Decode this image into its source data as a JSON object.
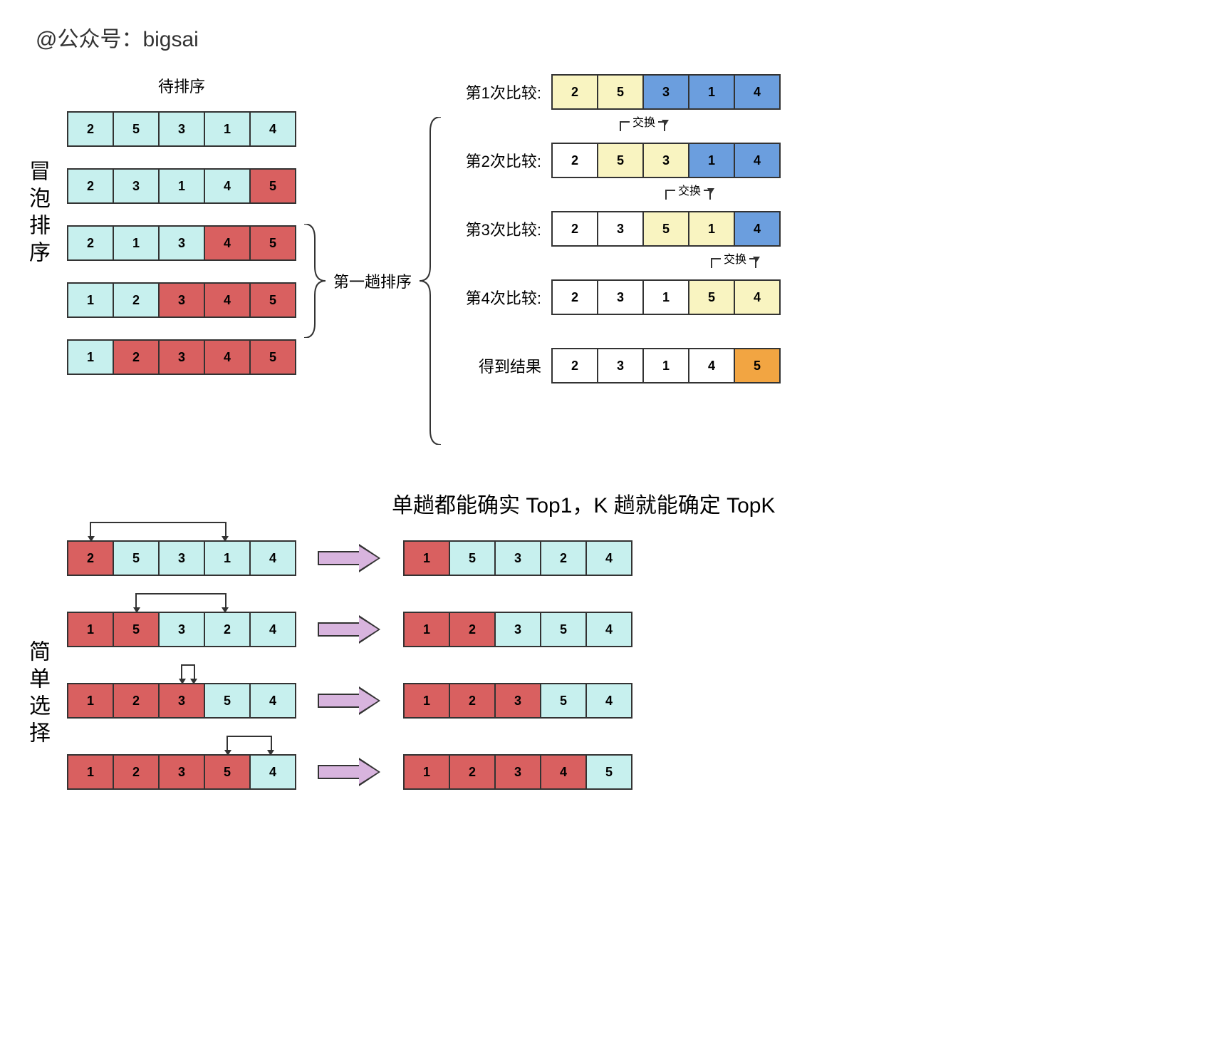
{
  "header": "@公众号：bigsai",
  "colors": {
    "cyan": "#c7f0ee",
    "red": "#d96060",
    "yellow": "#f9f4c1",
    "blue": "#6b9ede",
    "orange": "#f2a542",
    "white": "#ffffff",
    "border": "#333333",
    "arrow_fill": "#d8b4de"
  },
  "bubble": {
    "title": "冒泡排序",
    "caption": "待排序",
    "rows": [
      {
        "vals": [
          2,
          5,
          3,
          1,
          4
        ],
        "c": [
          "cyan",
          "cyan",
          "cyan",
          "cyan",
          "cyan"
        ]
      },
      {
        "vals": [
          2,
          3,
          1,
          4,
          5
        ],
        "c": [
          "cyan",
          "cyan",
          "cyan",
          "cyan",
          "red"
        ]
      },
      {
        "vals": [
          2,
          1,
          3,
          4,
          5
        ],
        "c": [
          "cyan",
          "cyan",
          "cyan",
          "red",
          "red"
        ]
      },
      {
        "vals": [
          1,
          2,
          3,
          4,
          5
        ],
        "c": [
          "cyan",
          "cyan",
          "red",
          "red",
          "red"
        ]
      },
      {
        "vals": [
          1,
          2,
          3,
          4,
          5
        ],
        "c": [
          "cyan",
          "red",
          "red",
          "red",
          "red"
        ]
      }
    ],
    "mid_label": "第一趟排序",
    "right": [
      {
        "label": "第1次比较:",
        "vals": [
          2,
          5,
          3,
          1,
          4
        ],
        "c": [
          "yellow",
          "yellow",
          "blue",
          "blue",
          "blue"
        ],
        "swap": null
      },
      {
        "label": "第2次比较:",
        "vals": [
          2,
          5,
          3,
          1,
          4
        ],
        "c": [
          "white",
          "yellow",
          "yellow",
          "blue",
          "blue"
        ],
        "swap": {
          "from": 1,
          "to": 2,
          "text": "交换"
        }
      },
      {
        "label": "第3次比较:",
        "vals": [
          2,
          3,
          5,
          1,
          4
        ],
        "c": [
          "white",
          "white",
          "yellow",
          "yellow",
          "blue"
        ],
        "swap": {
          "from": 2,
          "to": 3,
          "text": "交换"
        }
      },
      {
        "label": "第4次比较:",
        "vals": [
          2,
          3,
          1,
          5,
          4
        ],
        "c": [
          "white",
          "white",
          "white",
          "yellow",
          "yellow"
        ],
        "swap": {
          "from": 3,
          "to": 4,
          "text": "交换"
        }
      },
      {
        "label": "得到结果",
        "vals": [
          2,
          3,
          1,
          4,
          5
        ],
        "c": [
          "white",
          "white",
          "white",
          "white",
          "orange"
        ],
        "swap": null
      }
    ]
  },
  "note": "单趟都能确实 Top1，K 趟就能确定 TopK",
  "selection": {
    "title": "简单选择",
    "rows": [
      {
        "left": {
          "vals": [
            2,
            5,
            3,
            1,
            4
          ],
          "c": [
            "red",
            "cyan",
            "cyan",
            "cyan",
            "cyan"
          ]
        },
        "anno": {
          "from": 0,
          "to": 3
        },
        "right": {
          "vals": [
            1,
            5,
            3,
            2,
            4
          ],
          "c": [
            "red",
            "cyan",
            "cyan",
            "cyan",
            "cyan"
          ]
        }
      },
      {
        "left": {
          "vals": [
            1,
            5,
            3,
            2,
            4
          ],
          "c": [
            "red",
            "red",
            "cyan",
            "cyan",
            "cyan"
          ]
        },
        "anno": {
          "from": 1,
          "to": 3
        },
        "right": {
          "vals": [
            1,
            2,
            3,
            5,
            4
          ],
          "c": [
            "red",
            "red",
            "cyan",
            "cyan",
            "cyan"
          ]
        }
      },
      {
        "left": {
          "vals": [
            1,
            2,
            3,
            5,
            4
          ],
          "c": [
            "red",
            "red",
            "red",
            "cyan",
            "cyan"
          ]
        },
        "anno": {
          "from": 2,
          "to": 2
        },
        "right": {
          "vals": [
            1,
            2,
            3,
            5,
            4
          ],
          "c": [
            "red",
            "red",
            "red",
            "cyan",
            "cyan"
          ]
        }
      },
      {
        "left": {
          "vals": [
            1,
            2,
            3,
            5,
            4
          ],
          "c": [
            "red",
            "red",
            "red",
            "red",
            "cyan"
          ]
        },
        "anno": {
          "from": 3,
          "to": 4
        },
        "right": {
          "vals": [
            1,
            2,
            3,
            4,
            5
          ],
          "c": [
            "red",
            "red",
            "red",
            "red",
            "cyan"
          ]
        }
      }
    ]
  },
  "cell": {
    "w": 66,
    "h": 50
  }
}
